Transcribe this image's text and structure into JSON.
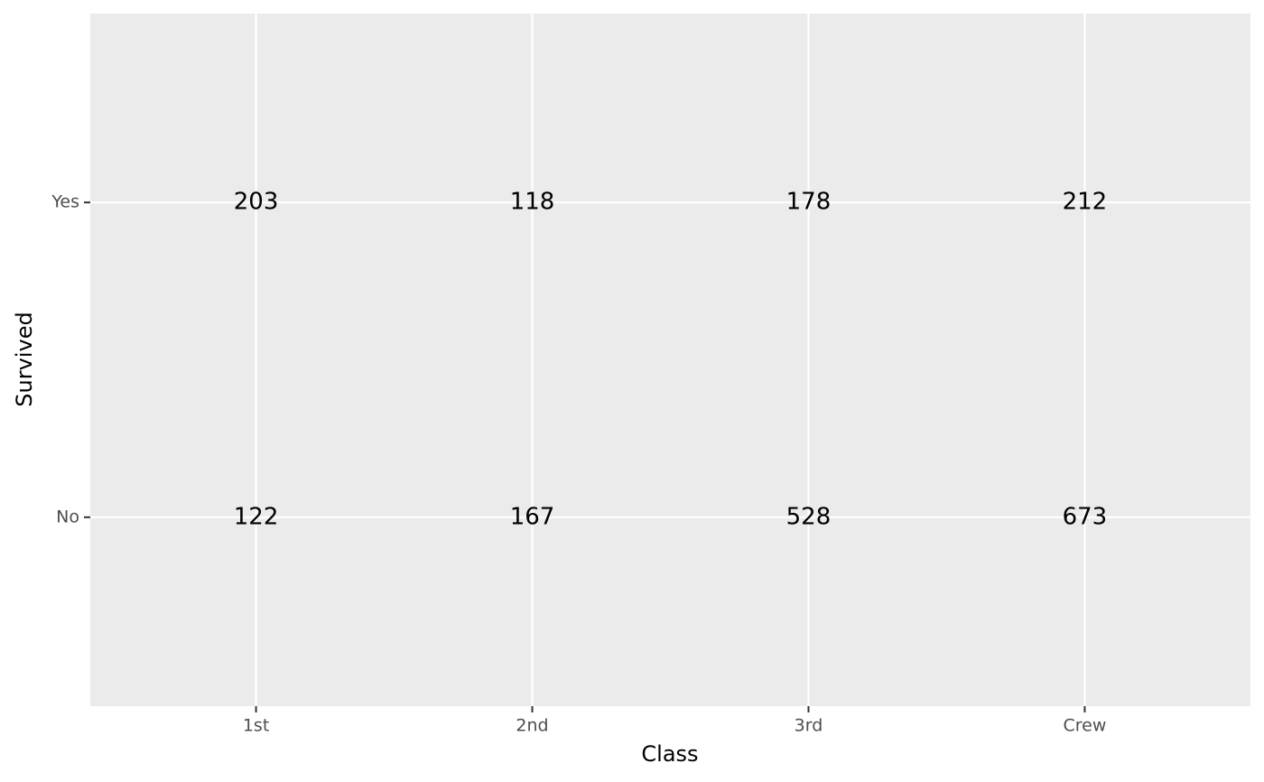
{
  "chart_data": {
    "type": "text",
    "x_label": "Class",
    "y_label": "Survived",
    "categories": [
      "1st",
      "2nd",
      "3rd",
      "Crew"
    ],
    "y_categories": [
      "No",
      "Yes"
    ],
    "values": [
      [
        122,
        167,
        528,
        673
      ],
      [
        203,
        118,
        178,
        212
      ]
    ],
    "panel_color": "#ebebeb",
    "grid_color": "#ffffff",
    "text_color": "#000000",
    "grid": true
  }
}
